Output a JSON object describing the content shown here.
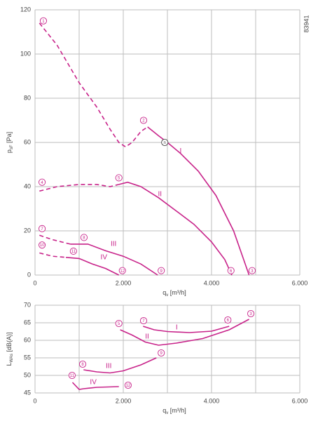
{
  "chart_data": [
    {
      "type": "line",
      "id_text": "83941",
      "ylabel": [
        "p",
        "sF",
        " [Pa]"
      ],
      "xlabel": [
        "q",
        "v",
        " [m³/h]"
      ],
      "xlim": [
        0,
        6000
      ],
      "ylim": [
        0,
        120
      ],
      "xticks": [
        0,
        {
          "value": 2000,
          "label": "2.000"
        },
        {
          "value": 4000,
          "label": "4.000"
        },
        {
          "value": 6000,
          "label": "6.000"
        }
      ],
      "xminor": [
        1000,
        3000,
        5000
      ],
      "yticks": [
        0,
        20,
        40,
        60,
        80,
        100,
        120
      ],
      "grid": true,
      "series": [
        {
          "name": "I",
          "color": "#c8238a",
          "label_at": [
            3300,
            56
          ],
          "dashed_x": [
            100,
            500,
            1000,
            1400,
            1700,
            1900,
            2050,
            2200,
            2400,
            2550
          ],
          "dashed_values": [
            114,
            104,
            87,
            76,
            66,
            60,
            58,
            60,
            65,
            67
          ],
          "x": [
            2550,
            2800,
            3000,
            3300,
            3700,
            4100,
            4500,
            4850
          ],
          "values": [
            67,
            63,
            60,
            55,
            47,
            36,
            20,
            0
          ]
        },
        {
          "name": "II",
          "color": "#c8238a",
          "label_at": [
            2830,
            36.5
          ],
          "dashed_x": [
            100,
            500,
            1000,
            1400,
            1700,
            1900
          ],
          "dashed_values": [
            38,
            40,
            41,
            41,
            40,
            41
          ],
          "x": [
            1900,
            2100,
            2400,
            2800,
            3200,
            3600,
            4000,
            4300,
            4460
          ],
          "values": [
            41,
            42,
            40,
            35,
            29,
            23,
            15,
            7,
            0
          ]
        },
        {
          "name": "III",
          "color": "#c8238a",
          "label_at": [
            1780,
            14
          ],
          "dashed_x": [
            100,
            400,
            800
          ],
          "dashed_values": [
            18,
            16,
            14
          ],
          "x": [
            800,
            1200,
            1600,
            2000,
            2400,
            2780
          ],
          "values": [
            14,
            14,
            11,
            8.5,
            5,
            0
          ]
        },
        {
          "name": "IV",
          "color": "#c8238a",
          "label_at": [
            1560,
            8
          ],
          "dashed_x": [
            100,
            400,
            700
          ],
          "dashed_values": [
            10,
            8.5,
            8
          ],
          "x": [
            700,
            1000,
            1300,
            1600,
            1900
          ],
          "values": [
            8,
            7.5,
            5,
            3,
            0
          ]
        }
      ],
      "annotations": [
        {
          "label": "1",
          "x": 190,
          "y": 115
        },
        {
          "label": "2",
          "x": 2460,
          "y": 70
        },
        {
          "label": "n",
          "x": 2940,
          "y": 60,
          "color": "#444"
        },
        {
          "label": "4",
          "x": 160,
          "y": 42
        },
        {
          "label": "5",
          "x": 1900,
          "y": 44
        },
        {
          "label": "6",
          "x": 4440,
          "y": 2
        },
        {
          "label": "3",
          "x": 4920,
          "y": 2
        },
        {
          "label": "7",
          "x": 160,
          "y": 21
        },
        {
          "label": "8",
          "x": 1110,
          "y": 17
        },
        {
          "label": "9",
          "x": 2860,
          "y": 2
        },
        {
          "label": "10",
          "x": 160,
          "y": 13.6
        },
        {
          "label": "11",
          "x": 870,
          "y": 10.8
        },
        {
          "label": "12",
          "x": 1980,
          "y": 2
        }
      ]
    },
    {
      "type": "line",
      "ylabel": [
        "L",
        "WAs",
        " [dB(A)]"
      ],
      "xlabel": [
        "q",
        "v",
        " [m³/h]"
      ],
      "xlim": [
        0,
        6000
      ],
      "ylim": [
        45,
        70
      ],
      "xticks": [
        0,
        {
          "value": 2000,
          "label": "2.000"
        },
        {
          "value": 4000,
          "label": "4.000"
        },
        {
          "value": 6000,
          "label": "6.000"
        }
      ],
      "xminor": [
        1000,
        3000,
        5000
      ],
      "yticks": [
        45,
        50,
        55,
        60,
        65,
        70
      ],
      "grid": true,
      "series": [
        {
          "name": "I",
          "color": "#c8238a",
          "label_at": [
            3210,
            63.6
          ],
          "x": [
            2450,
            2700,
            3000,
            3500,
            4000,
            4400
          ],
          "values": [
            64,
            63,
            62.5,
            62.2,
            62.6,
            64
          ]
        },
        {
          "name": "II",
          "color": "#c8238a",
          "label_at": [
            2540,
            61
          ],
          "x": [
            1930,
            2200,
            2500,
            2800,
            3200,
            3800,
            4400,
            4850
          ],
          "values": [
            63,
            61.5,
            59.5,
            58.6,
            59.2,
            60.5,
            63,
            66
          ]
        },
        {
          "name": "III",
          "color": "#c8238a",
          "label_at": [
            1670,
            52.6
          ],
          "x": [
            1100,
            1400,
            1700,
            2000,
            2400,
            2750
          ],
          "values": [
            51.6,
            51,
            50.7,
            51.3,
            53,
            55
          ]
        },
        {
          "name": "IV",
          "color": "#c8238a",
          "label_at": [
            1320,
            48
          ],
          "x": [
            850,
            1000,
            1100,
            1400,
            1900
          ],
          "values": [
            48,
            46,
            46.2,
            46.6,
            46.8
          ]
        }
      ],
      "annotations": [
        {
          "label": "5",
          "x": 1900,
          "y": 64.8
        },
        {
          "label": "7",
          "x": 2460,
          "y": 65.6
        },
        {
          "label": "6",
          "x": 4370,
          "y": 65.8
        },
        {
          "label": "3",
          "x": 4890,
          "y": 67.6
        },
        {
          "label": "8",
          "x": 1080,
          "y": 53.2
        },
        {
          "label": "9",
          "x": 2860,
          "y": 56.4
        },
        {
          "label": "11",
          "x": 840,
          "y": 50
        },
        {
          "label": "12",
          "x": 2110,
          "y": 47.2
        }
      ]
    }
  ]
}
